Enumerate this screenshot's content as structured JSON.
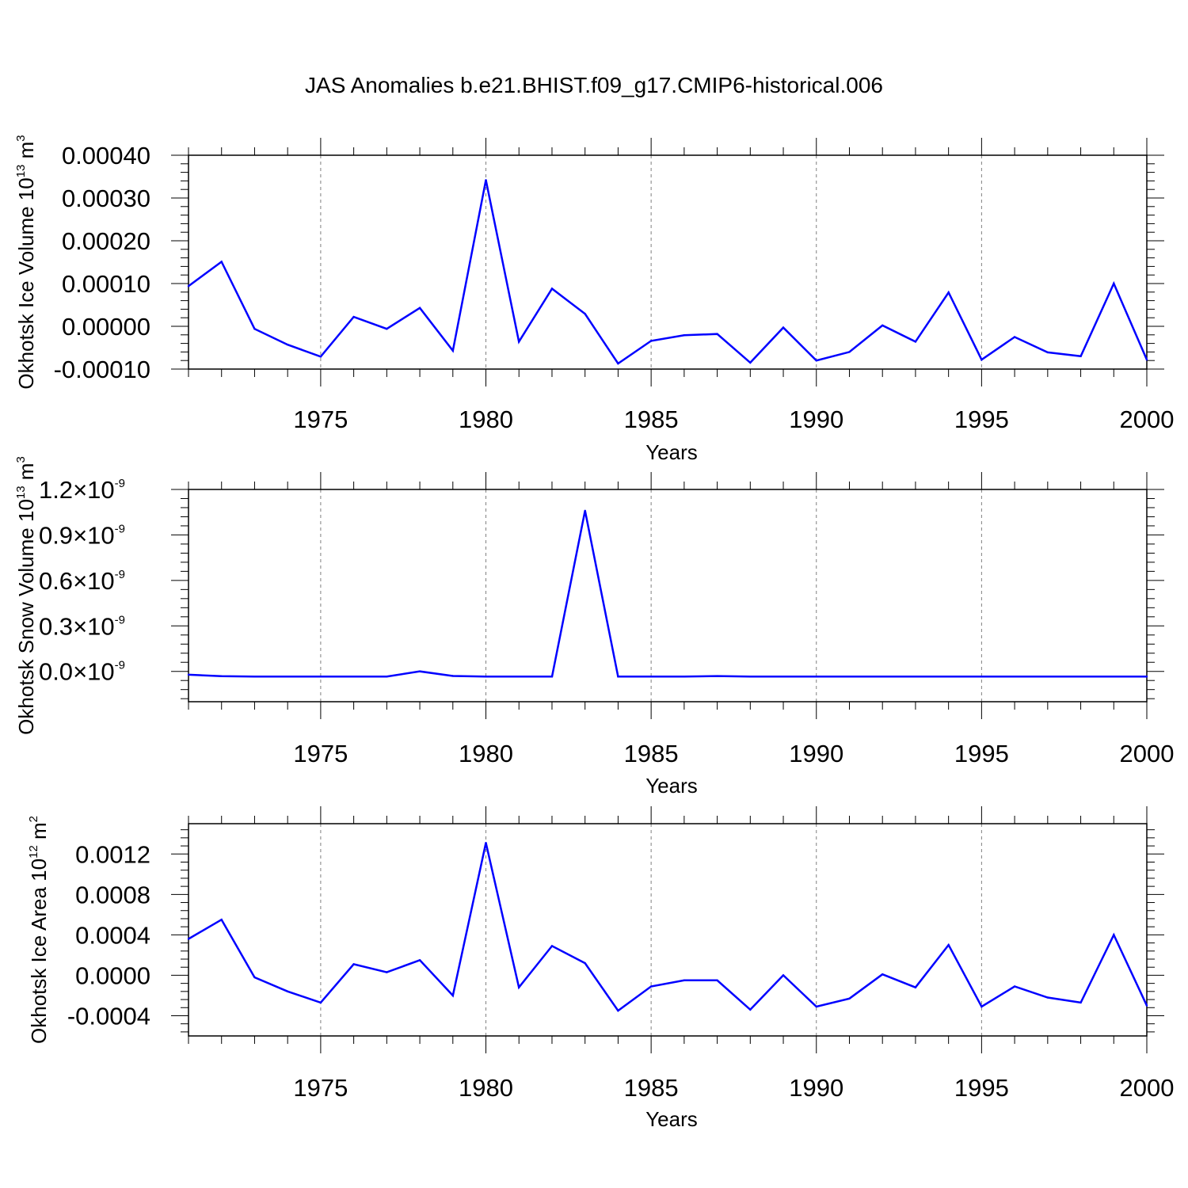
{
  "title": "JAS Anomalies b.e21.BHIST.f09_g17.CMIP6-historical.006",
  "colors": {
    "series": "#0000ff",
    "axes": "#000000",
    "grid": "#808080"
  },
  "chart_data": [
    {
      "type": "line",
      "title": "JAS Anomalies b.e21.BHIST.f09_g17.CMIP6-historical.006",
      "xlabel": "Years",
      "ylabel": {
        "text": "Okhotsk Ice Volume 10",
        "exp": "13",
        "unit": " m",
        "unit_exp": "3"
      },
      "xlim": [
        1971,
        2000
      ],
      "ylim": [
        -0.0001,
        0.0004
      ],
      "x_ticks": [
        1975,
        1980,
        1985,
        1990,
        1995,
        2000
      ],
      "y_ticks": [
        -0.0001,
        0,
        0.0001,
        0.0002,
        0.0003,
        0.0004
      ],
      "y_tick_labels": [
        "-0.00010",
        "0.00000",
        "0.00010",
        "0.00020",
        "0.00030",
        "0.00040"
      ],
      "grid": "vertical dashed at x ticks",
      "x": [
        1971,
        1972,
        1973,
        1974,
        1975,
        1976,
        1977,
        1978,
        1979,
        1980,
        1981,
        1982,
        1983,
        1984,
        1985,
        1986,
        1987,
        1988,
        1989,
        1990,
        1991,
        1992,
        1993,
        1994,
        1995,
        1996,
        1997,
        1998,
        1999,
        2000
      ],
      "values": [
        9.4e-05,
        0.000151,
        -6e-06,
        -4.3e-05,
        -7.1e-05,
        2.2e-05,
        -6e-06,
        4.3e-05,
        -5.7e-05,
        0.000342,
        -3.6e-05,
        8.8e-05,
        2.9e-05,
        -8.7e-05,
        -3.4e-05,
        -2.1e-05,
        -1.8e-05,
        -8.5e-05,
        -3e-06,
        -8e-05,
        -6e-05,
        2e-06,
        -3.6e-05,
        7.9e-05,
        -7.8e-05,
        -2.5e-05,
        -6.1e-05,
        -7e-05,
        0.0001,
        -7.8e-05
      ]
    },
    {
      "type": "line",
      "xlabel": "Years",
      "ylabel": {
        "text": "Okhotsk Snow Volume 10",
        "exp": "13",
        "unit": " m",
        "unit_exp": "3"
      },
      "xlim": [
        1971,
        2000
      ],
      "ylim": [
        -2e-10,
        1.2e-09
      ],
      "x_ticks": [
        1975,
        1980,
        1985,
        1990,
        1995,
        2000
      ],
      "y_ticks": [
        0,
        3e-10,
        6e-10,
        9e-10,
        1.2e-09
      ],
      "y_tick_labels": [
        "0.0",
        "0.3",
        "0.6",
        "0.9",
        "1.2"
      ],
      "y_tick_suffix": "×10",
      "y_tick_suffix_exp": "-9",
      "grid": "vertical dashed at x ticks",
      "x": [
        1971,
        1972,
        1973,
        1974,
        1975,
        1976,
        1977,
        1978,
        1979,
        1980,
        1981,
        1982,
        1983,
        1984,
        1985,
        1986,
        1987,
        1988,
        1989,
        1990,
        1991,
        1992,
        1993,
        1994,
        1995,
        1996,
        1997,
        1998,
        1999,
        2000
      ],
      "values": [
        -2.2e-11,
        -3.2e-11,
        -3.4e-11,
        -3.4e-11,
        -3.4e-11,
        -3.4e-11,
        -3.4e-11,
        0.0,
        -3e-11,
        -3.4e-11,
        -3.4e-11,
        -3.4e-11,
        1.06e-09,
        -3.4e-11,
        -3.4e-11,
        -3.4e-11,
        -3.1e-11,
        -3.4e-11,
        -3.4e-11,
        -3.4e-11,
        -3.4e-11,
        -3.4e-11,
        -3.4e-11,
        -3.4e-11,
        -3.4e-11,
        -3.4e-11,
        -3.4e-11,
        -3.4e-11,
        -3.4e-11,
        -3.4e-11
      ]
    },
    {
      "type": "line",
      "xlabel": "Years",
      "ylabel": {
        "text": "Okhotsk Ice Area 10",
        "exp": "12",
        "unit": " m",
        "unit_exp": "2"
      },
      "xlim": [
        1971,
        2000
      ],
      "ylim": [
        -0.0006,
        0.0015
      ],
      "x_ticks": [
        1975,
        1980,
        1985,
        1990,
        1995,
        2000
      ],
      "y_ticks": [
        -0.0004,
        0,
        0.0004,
        0.0008,
        0.0012
      ],
      "y_tick_labels": [
        "-0.0004",
        "0.0000",
        "0.0004",
        "0.0008",
        "0.0012"
      ],
      "grid": "vertical dashed at x ticks",
      "x": [
        1971,
        1972,
        1973,
        1974,
        1975,
        1976,
        1977,
        1978,
        1979,
        1980,
        1981,
        1982,
        1983,
        1984,
        1985,
        1986,
        1987,
        1988,
        1989,
        1990,
        1991,
        1992,
        1993,
        1994,
        1995,
        1996,
        1997,
        1998,
        1999,
        2000
      ],
      "values": [
        0.00036,
        0.00055,
        -2e-05,
        -0.00016,
        -0.00027,
        0.00011,
        3e-05,
        0.00015,
        -0.0002,
        0.00131,
        -0.00012,
        0.00029,
        0.00012,
        -0.00035,
        -0.00011,
        -5e-05,
        -5e-05,
        -0.00034,
        0.0,
        -0.00031,
        -0.00023,
        1e-05,
        -0.00012,
        0.0003,
        -0.00031,
        -0.00011,
        -0.00022,
        -0.00027,
        0.0004,
        -0.0003
      ]
    }
  ]
}
